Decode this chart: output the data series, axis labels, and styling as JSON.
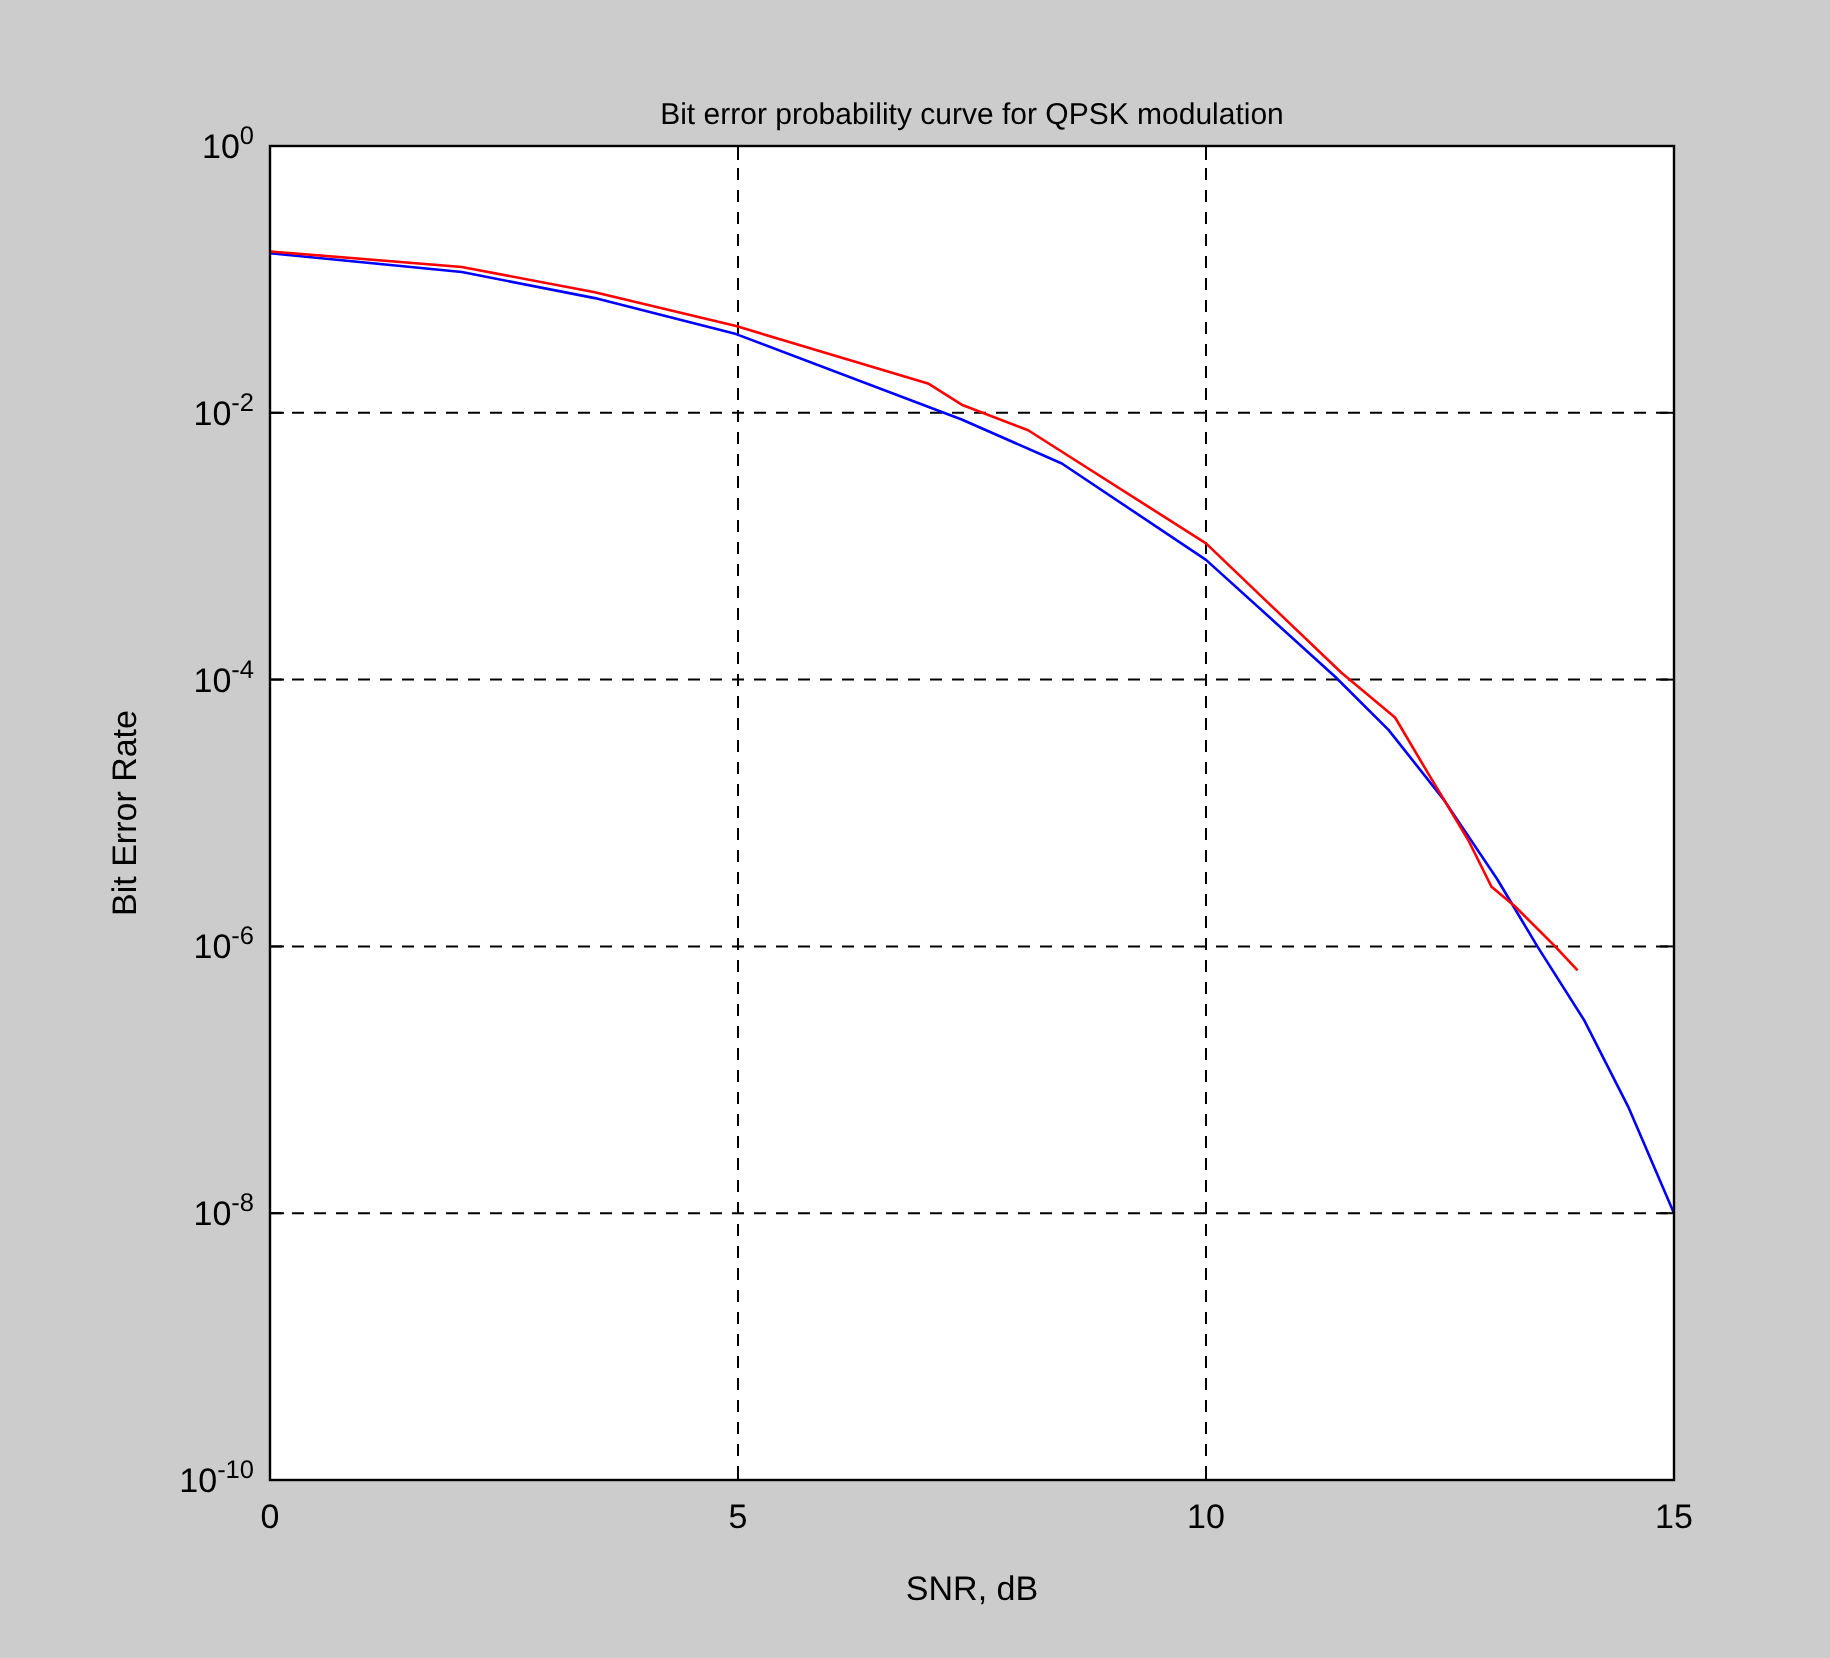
{
  "chart_data": {
    "type": "line",
    "title": "Bit error probability curve for QPSK modulation",
    "xlabel": "SNR, dB",
    "ylabel": "Bit Error Rate",
    "log": "y",
    "grid": true,
    "xlim": [
      0,
      15
    ],
    "xticks": [
      0,
      5,
      10,
      15
    ],
    "ylim": [
      1e-10,
      1
    ],
    "yticks": [
      {
        "value": 1,
        "label": "10$^{0}$"
      },
      {
        "value": 0.01,
        "label": "10$^{-2}$"
      },
      {
        "value": 0.0001,
        "label": "10$^{-4}$"
      },
      {
        "value": 1e-06,
        "label": "10$^{-6}$"
      },
      {
        "value": 1e-08,
        "label": "10$^{-8}$"
      },
      {
        "value": 1e-10,
        "label": "10$^{-10}$"
      }
    ],
    "series": [
      {
        "color": "#0000ff",
        "x": [
          0,
          2.05,
          3.47,
          4.98,
          7.39,
          8.46,
          10,
          11.38,
          11.95,
          12.54,
          13.11,
          13.54,
          14.04,
          14.51,
          15
        ],
        "values": [
          0.157,
          0.1135,
          0.0724,
          0.0389,
          0.0089,
          0.00417,
          0.00079,
          0.000105,
          4.2e-05,
          1.26e-05,
          3.2e-06,
          1e-06,
          2.8e-07,
          6.3e-08,
          1e-08
        ]
      },
      {
        "color": "#ff0000",
        "x": [
          0,
          2.05,
          3.47,
          4.98,
          7.03,
          7.39,
          8.1,
          10,
          11.45,
          12.02,
          12.37,
          12.8,
          13.05,
          13.3,
          13.73,
          13.97
        ],
        "values": [
          0.162,
          0.124,
          0.08,
          0.0447,
          0.0166,
          0.0115,
          0.0074,
          0.00105,
          0.000112,
          5.2e-05,
          2e-05,
          6.3e-06,
          2.8e-06,
          2e-06,
          1e-06,
          6.6e-07
        ]
      }
    ]
  }
}
